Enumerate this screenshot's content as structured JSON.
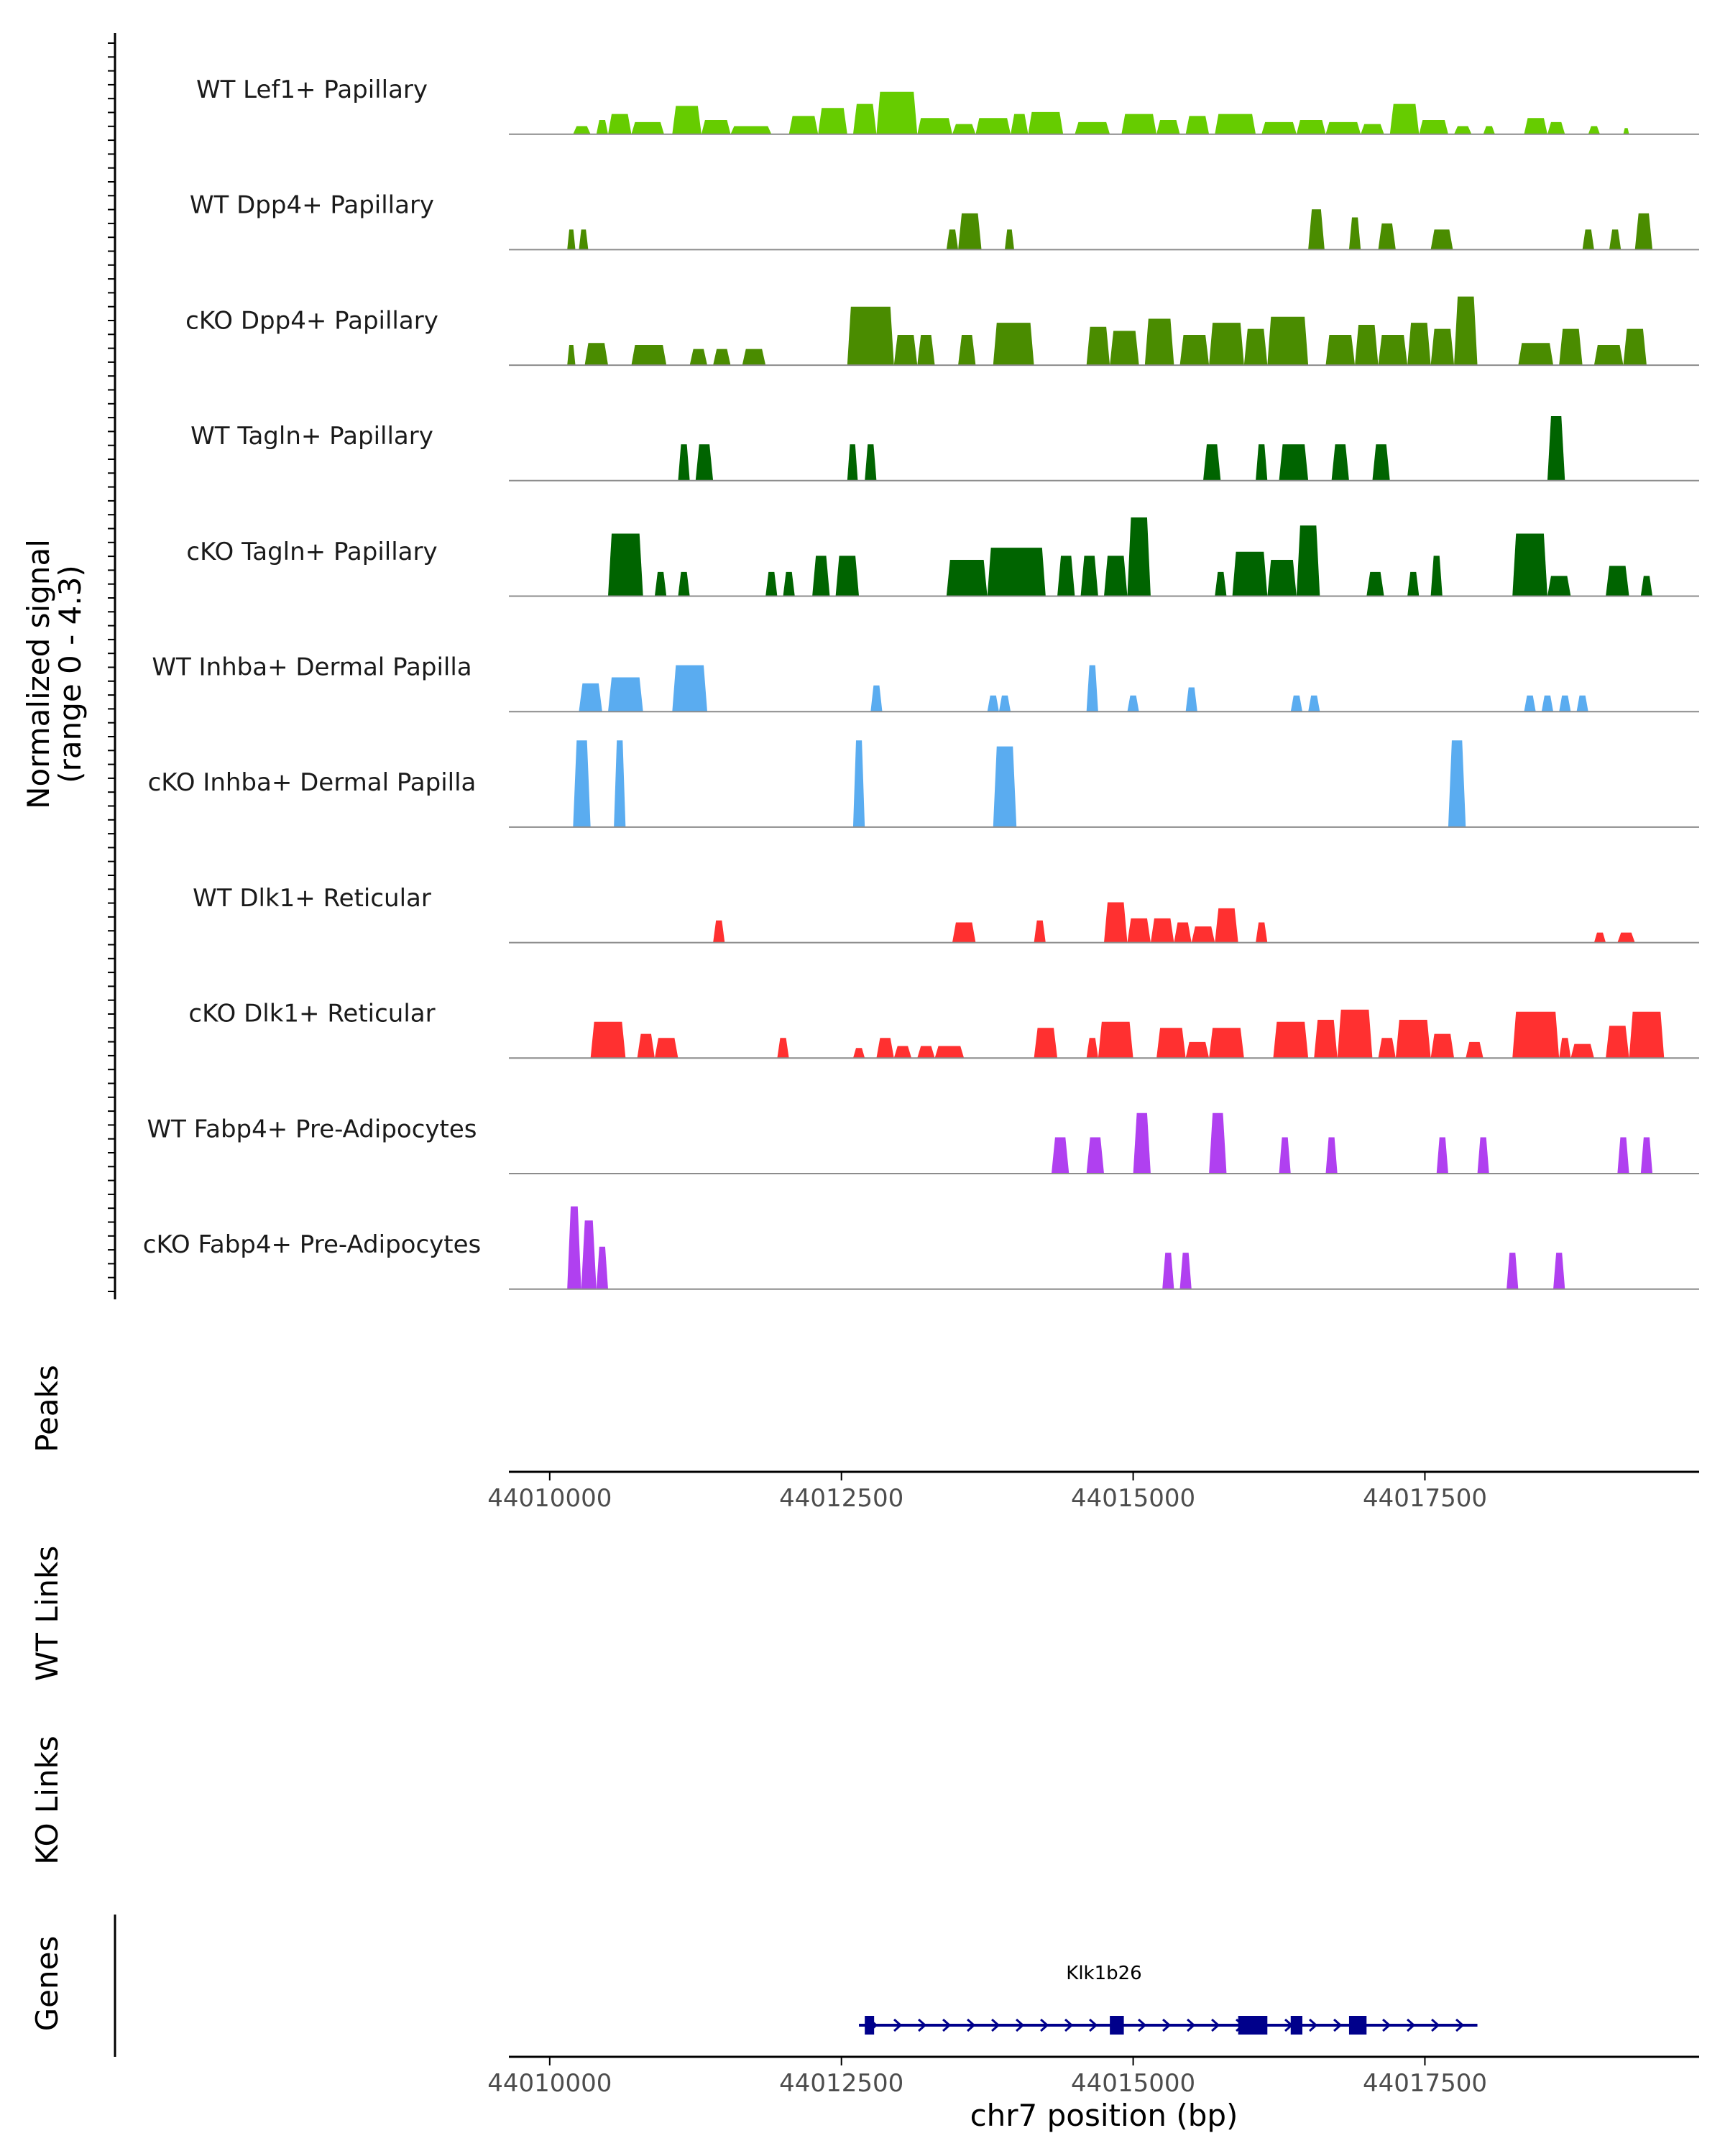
{
  "chart_data": {
    "type": "area",
    "title": "",
    "xlabel": "chr7 position (bp)",
    "ylabel_line1": "Normalized signal",
    "ylabel_line2": "(range 0 - 4.3)",
    "ylim": [
      0,
      4.3
    ],
    "xlim": [
      44009650,
      44019850
    ],
    "x_ticks": [
      44010000,
      44012500,
      44015000,
      44017500
    ],
    "x_tick_labels": [
      "44010000",
      "44012500",
      "44015000",
      "44017500"
    ],
    "section_labels": {
      "peaks": "Peaks",
      "wt_links": "WT Links",
      "ko_links": "KO Links",
      "genes": "Genes"
    },
    "series": [
      {
        "name": "WT Lef1+ Papillary",
        "color": "#66cc00",
        "peaks": [
          [
            44010200,
            44010350,
            0.4
          ],
          [
            44010400,
            44010500,
            0.7
          ],
          [
            44010500,
            44010700,
            1.0
          ],
          [
            44010700,
            44010980,
            0.6
          ],
          [
            44011050,
            44011300,
            1.4
          ],
          [
            44011300,
            44011550,
            0.7
          ],
          [
            44011550,
            44011900,
            0.4
          ],
          [
            44012050,
            44012300,
            0.9
          ],
          [
            44012300,
            44012550,
            1.3
          ],
          [
            44012600,
            44012800,
            1.5
          ],
          [
            44012800,
            44013150,
            2.1
          ],
          [
            44013150,
            44013450,
            0.8
          ],
          [
            44013450,
            44013650,
            0.5
          ],
          [
            44013650,
            44013950,
            0.8
          ],
          [
            44013950,
            44014100,
            1.0
          ],
          [
            44014100,
            44014400,
            1.1
          ],
          [
            44014500,
            44014800,
            0.6
          ],
          [
            44014900,
            44015200,
            1.0
          ],
          [
            44015200,
            44015400,
            0.7
          ],
          [
            44015450,
            44015650,
            0.9
          ],
          [
            44015700,
            44016050,
            1.0
          ],
          [
            44016100,
            44016400,
            0.6
          ],
          [
            44016400,
            44016650,
            0.7
          ],
          [
            44016650,
            44016950,
            0.6
          ],
          [
            44016950,
            44017150,
            0.5
          ],
          [
            44017200,
            44017450,
            1.5
          ],
          [
            44017450,
            44017700,
            0.7
          ],
          [
            44017750,
            44017900,
            0.4
          ],
          [
            44018000,
            44018100,
            0.4
          ],
          [
            44018350,
            44018550,
            0.8
          ],
          [
            44018550,
            44018700,
            0.6
          ],
          [
            44018900,
            44019000,
            0.4
          ],
          [
            44019200,
            44019250,
            0.3
          ]
        ]
      },
      {
        "name": "WT Dpp4+ Papillary",
        "color": "#4a8c00",
        "peaks": [
          [
            44010150,
            44010220,
            1.0
          ],
          [
            44010250,
            44010330,
            1.0
          ],
          [
            44013400,
            44013500,
            1.0
          ],
          [
            44013500,
            44013700,
            1.8
          ],
          [
            44013900,
            44013980,
            1.0
          ],
          [
            44016500,
            44016640,
            2.0
          ],
          [
            44016850,
            44016950,
            1.6
          ],
          [
            44017100,
            44017250,
            1.3
          ],
          [
            44017550,
            44017740,
            1.0
          ],
          [
            44018850,
            44018950,
            1.0
          ],
          [
            44019080,
            44019180,
            1.0
          ],
          [
            44019300,
            44019450,
            1.8
          ]
        ]
      },
      {
        "name": "cKO Dpp4+ Papillary",
        "color": "#4a8c00",
        "peaks": [
          [
            44010150,
            44010220,
            1.0
          ],
          [
            44010300,
            44010500,
            1.1
          ],
          [
            44010700,
            44011000,
            1.0
          ],
          [
            44011200,
            44011350,
            0.8
          ],
          [
            44011400,
            44011550,
            0.8
          ],
          [
            44011650,
            44011850,
            0.8
          ],
          [
            44012550,
            44012950,
            2.9
          ],
          [
            44012950,
            44013150,
            1.5
          ],
          [
            44013150,
            44013300,
            1.5
          ],
          [
            44013500,
            44013650,
            1.5
          ],
          [
            44013800,
            44014150,
            2.1
          ],
          [
            44014600,
            44014800,
            1.9
          ],
          [
            44014800,
            44015050,
            1.7
          ],
          [
            44015100,
            44015350,
            2.3
          ],
          [
            44015400,
            44015650,
            1.5
          ],
          [
            44015650,
            44015950,
            2.1
          ],
          [
            44015950,
            44016150,
            1.8
          ],
          [
            44016150,
            44016500,
            2.4
          ],
          [
            44016650,
            44016900,
            1.5
          ],
          [
            44016900,
            44017100,
            2.0
          ],
          [
            44017100,
            44017350,
            1.5
          ],
          [
            44017350,
            44017550,
            2.1
          ],
          [
            44017550,
            44017750,
            1.8
          ],
          [
            44017750,
            44017950,
            3.4
          ],
          [
            44018300,
            44018600,
            1.1
          ],
          [
            44018650,
            44018850,
            1.8
          ],
          [
            44018950,
            44019200,
            1.0
          ],
          [
            44019200,
            44019400,
            1.8
          ]
        ]
      },
      {
        "name": "WT Tagln+ Papillary",
        "color": "#006400",
        "peaks": [
          [
            44011100,
            44011200,
            1.8
          ],
          [
            44011250,
            44011400,
            1.8
          ],
          [
            44012550,
            44012640,
            1.8
          ],
          [
            44012700,
            44012800,
            1.8
          ],
          [
            44015600,
            44015750,
            1.8
          ],
          [
            44016050,
            44016150,
            1.8
          ],
          [
            44016250,
            44016500,
            1.8
          ],
          [
            44016700,
            44016850,
            1.8
          ],
          [
            44017050,
            44017200,
            1.8
          ],
          [
            44018550,
            44018700,
            3.2
          ]
        ]
      },
      {
        "name": "cKO Tagln+ Papillary",
        "color": "#006400",
        "peaks": [
          [
            44010500,
            44010800,
            3.1
          ],
          [
            44010900,
            44011000,
            1.2
          ],
          [
            44011100,
            44011200,
            1.2
          ],
          [
            44011850,
            44011950,
            1.2
          ],
          [
            44012000,
            44012100,
            1.2
          ],
          [
            44012250,
            44012400,
            2.0
          ],
          [
            44012450,
            44012650,
            2.0
          ],
          [
            44013400,
            44013750,
            1.8
          ],
          [
            44013750,
            44014250,
            2.4
          ],
          [
            44014350,
            44014500,
            2.0
          ],
          [
            44014550,
            44014700,
            2.0
          ],
          [
            44014750,
            44014950,
            2.0
          ],
          [
            44014950,
            44015150,
            3.9
          ],
          [
            44015700,
            44015800,
            1.2
          ],
          [
            44015850,
            44016150,
            2.2
          ],
          [
            44016150,
            44016400,
            1.8
          ],
          [
            44016400,
            44016600,
            3.5
          ],
          [
            44017000,
            44017150,
            1.2
          ],
          [
            44017350,
            44017450,
            1.2
          ],
          [
            44017550,
            44017650,
            2.0
          ],
          [
            44018250,
            44018550,
            3.1
          ],
          [
            44018550,
            44018750,
            1.0
          ],
          [
            44019050,
            44019250,
            1.5
          ],
          [
            44019350,
            44019450,
            1.0
          ]
        ]
      },
      {
        "name": "WT Inhba+ Dermal Papilla",
        "color": "#5aacf0",
        "peaks": [
          [
            44010250,
            44010450,
            1.4
          ],
          [
            44010500,
            44010800,
            1.7
          ],
          [
            44011050,
            44011350,
            2.3
          ],
          [
            44012750,
            44012850,
            1.3
          ],
          [
            44013750,
            44013850,
            0.8
          ],
          [
            44013850,
            44013950,
            0.8
          ],
          [
            44014600,
            44014700,
            2.3
          ],
          [
            44014950,
            44015050,
            0.8
          ],
          [
            44015450,
            44015550,
            1.2
          ],
          [
            44016350,
            44016450,
            0.8
          ],
          [
            44016500,
            44016600,
            0.8
          ],
          [
            44018350,
            44018450,
            0.8
          ],
          [
            44018500,
            44018600,
            0.8
          ],
          [
            44018650,
            44018750,
            0.8
          ],
          [
            44018800,
            44018900,
            0.8
          ]
        ]
      },
      {
        "name": "cKO Inhba+ Dermal Papilla",
        "color": "#5aacf0",
        "peaks": [
          [
            44010200,
            44010350,
            4.3
          ],
          [
            44010550,
            44010650,
            4.3
          ],
          [
            44012600,
            44012700,
            4.3
          ],
          [
            44013800,
            44014000,
            4.0
          ],
          [
            44017700,
            44017850,
            4.3
          ]
        ]
      },
      {
        "name": "WT Dlk1+ Reticular",
        "color": "#ff3030",
        "peaks": [
          [
            44011400,
            44011500,
            1.1
          ],
          [
            44013450,
            44013650,
            1.0
          ],
          [
            44014150,
            44014250,
            1.1
          ],
          [
            44014750,
            44014950,
            2.0
          ],
          [
            44014950,
            44015150,
            1.2
          ],
          [
            44015150,
            44015350,
            1.2
          ],
          [
            44015350,
            44015500,
            1.0
          ],
          [
            44015500,
            44015700,
            0.8
          ],
          [
            44015700,
            44015900,
            1.7
          ],
          [
            44016050,
            44016150,
            1.0
          ],
          [
            44018950,
            44019050,
            0.5
          ],
          [
            44019150,
            44019300,
            0.5
          ]
        ]
      },
      {
        "name": "cKO Dlk1+ Reticular",
        "color": "#ff3030",
        "peaks": [
          [
            44010350,
            44010650,
            1.8
          ],
          [
            44010750,
            44010900,
            1.2
          ],
          [
            44010900,
            44011100,
            1.0
          ],
          [
            44011950,
            44012050,
            1.0
          ],
          [
            44012600,
            44012700,
            0.5
          ],
          [
            44012800,
            44012950,
            1.0
          ],
          [
            44012950,
            44013100,
            0.6
          ],
          [
            44013150,
            44013300,
            0.6
          ],
          [
            44013300,
            44013550,
            0.6
          ],
          [
            44014150,
            44014350,
            1.5
          ],
          [
            44014600,
            44014700,
            1.0
          ],
          [
            44014700,
            44015000,
            1.8
          ],
          [
            44015200,
            44015450,
            1.5
          ],
          [
            44015450,
            44015650,
            0.8
          ],
          [
            44015650,
            44015950,
            1.5
          ],
          [
            44016200,
            44016500,
            1.8
          ],
          [
            44016550,
            44016750,
            1.9
          ],
          [
            44016750,
            44017050,
            2.4
          ],
          [
            44017100,
            44017250,
            1.0
          ],
          [
            44017250,
            44017550,
            1.9
          ],
          [
            44017550,
            44017750,
            1.2
          ],
          [
            44017850,
            44018000,
            0.8
          ],
          [
            44018250,
            44018650,
            2.3
          ],
          [
            44018650,
            44018750,
            1.0
          ],
          [
            44018750,
            44018950,
            0.7
          ],
          [
            44019050,
            44019250,
            1.6
          ],
          [
            44019250,
            44019550,
            2.3
          ]
        ]
      },
      {
        "name": "WT Fabp4+ Pre-Adipocytes",
        "color": "#b040f0",
        "peaks": [
          [
            44014300,
            44014450,
            1.8
          ],
          [
            44014600,
            44014750,
            1.8
          ],
          [
            44015000,
            44015150,
            3.0
          ],
          [
            44015650,
            44015800,
            3.0
          ],
          [
            44016250,
            44016350,
            1.8
          ],
          [
            44016650,
            44016750,
            1.8
          ],
          [
            44017600,
            44017700,
            1.8
          ],
          [
            44017950,
            44018050,
            1.8
          ],
          [
            44019150,
            44019250,
            1.8
          ],
          [
            44019350,
            44019450,
            1.8
          ]
        ]
      },
      {
        "name": "cKO Fabp4+ Pre-Adipocytes",
        "color": "#b040f0",
        "peaks": [
          [
            44010150,
            44010270,
            4.1
          ],
          [
            44010270,
            44010400,
            3.4
          ],
          [
            44010400,
            44010500,
            2.1
          ],
          [
            44015250,
            44015350,
            1.8
          ],
          [
            44015400,
            44015500,
            1.8
          ],
          [
            44018200,
            44018300,
            1.8
          ],
          [
            44018600,
            44018700,
            1.8
          ]
        ]
      }
    ],
    "gene": {
      "name": "Klk1b26",
      "color": "#00008b",
      "start": 44012650,
      "end": 44017950,
      "exons": [
        [
          44012700,
          44012780
        ],
        [
          44014800,
          44014920
        ],
        [
          44015900,
          44016150
        ],
        [
          44016350,
          44016450
        ],
        [
          44016850,
          44017000
        ]
      ]
    }
  }
}
